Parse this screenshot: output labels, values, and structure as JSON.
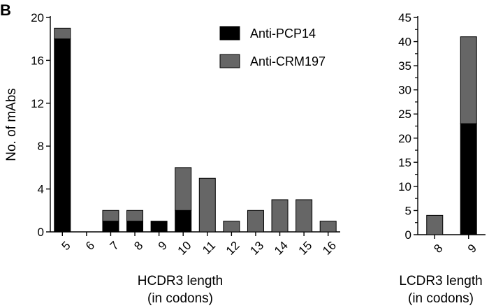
{
  "panel_label": "B",
  "colors": {
    "anti_pcp14": "#000000",
    "anti_crm197": "#666666",
    "axis": "#000000"
  },
  "chart_data": [
    {
      "type": "bar",
      "stacked": true,
      "categories": [
        "5",
        "6",
        "7",
        "8",
        "9",
        "10",
        "11",
        "12",
        "13",
        "14",
        "15",
        "16"
      ],
      "series": [
        {
          "name": "Anti-PCP14",
          "values": [
            18,
            0,
            1,
            1,
            1,
            2,
            0,
            0,
            0,
            0,
            0,
            0
          ]
        },
        {
          "name": "Anti-CRM197",
          "values": [
            1,
            0,
            1,
            1,
            0,
            4,
            5,
            1,
            2,
            3,
            3,
            1
          ]
        }
      ],
      "xlabel": [
        "HCDR3 length",
        "(in codons)"
      ],
      "ylabel": "No. of mAbs",
      "ylim": [
        0,
        20
      ],
      "yticks": [
        "0",
        "4",
        "8",
        "12",
        "16",
        "20"
      ],
      "legend_position": "top-right"
    },
    {
      "type": "bar",
      "stacked": true,
      "categories": [
        "8",
        "9"
      ],
      "series": [
        {
          "name": "Anti-PCP14",
          "values": [
            0,
            23
          ]
        },
        {
          "name": "Anti-CRM197",
          "values": [
            4,
            18
          ]
        }
      ],
      "xlabel": [
        "LCDR3 length",
        "(in codons)"
      ],
      "ylim": [
        0,
        45
      ],
      "yticks": [
        "0",
        "5",
        "10",
        "15",
        "20",
        "25",
        "30",
        "35",
        "40",
        "45"
      ]
    }
  ]
}
